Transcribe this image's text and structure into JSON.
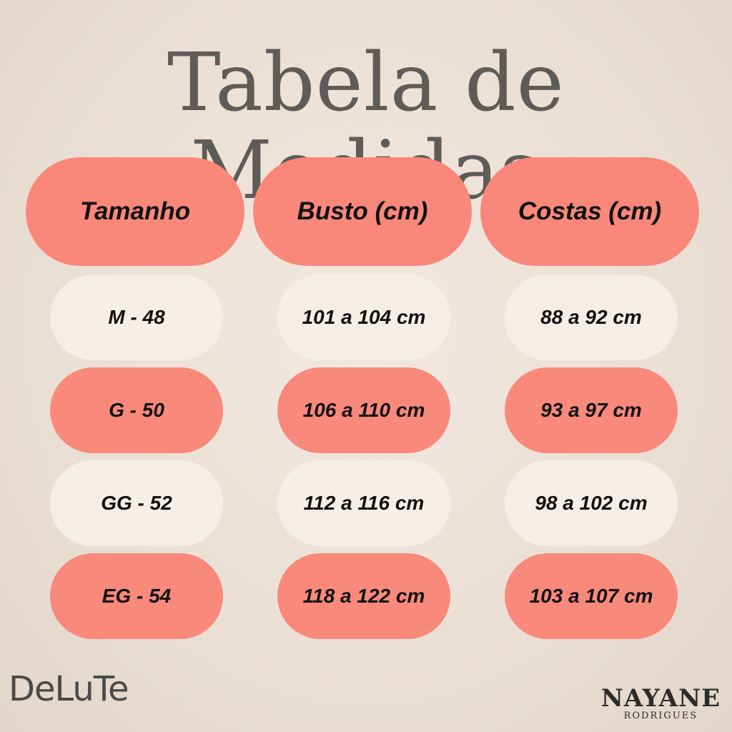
{
  "title": "Tabela de Medidas",
  "colors": {
    "coral": "#f9897b",
    "cream": "#f5eee7",
    "background": "#ebe0d5",
    "title": "#5e5b58"
  },
  "table": {
    "headers": [
      "Tamanho",
      "Busto (cm)",
      "Costas (cm)"
    ],
    "rows": [
      [
        "M - 48",
        "101 a 104 cm",
        "88 a 92 cm"
      ],
      [
        "G - 50",
        "106 a 110 cm",
        "93 a 97 cm"
      ],
      [
        "GG - 52",
        "112 a 116 cm",
        "98 a 102 cm"
      ],
      [
        "EG - 54",
        "118 a 122 cm",
        "103 a 107 cm"
      ]
    ]
  },
  "logos": {
    "left": "DeLuTe",
    "right_brand": "NAYANE",
    "right_sub": "RODRIGUES"
  }
}
